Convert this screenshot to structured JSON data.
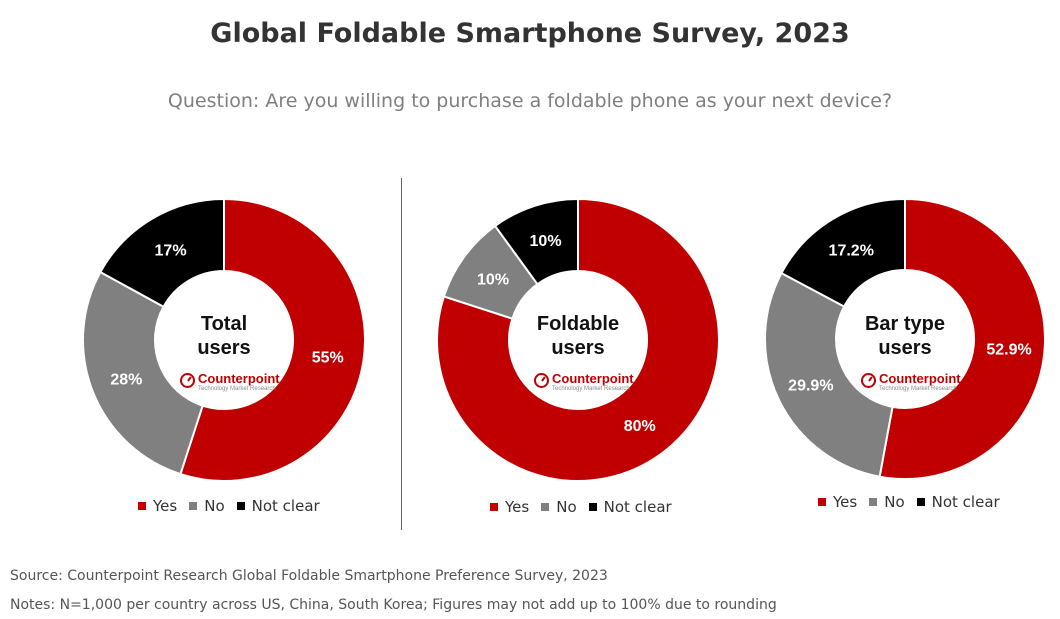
{
  "title": "Global Foldable Smartphone Survey, 2023",
  "subtitle": "Question: Are you willing to purchase a foldable phone as your next device?",
  "brand": {
    "name": "Counterpoint",
    "tagline": "Technology Market Research",
    "color": "#c00000"
  },
  "colors": {
    "Yes": "#c00000",
    "No": "#808080",
    "Not clear": "#000000"
  },
  "legend": [
    "Yes",
    "No",
    "Not clear"
  ],
  "chart_data": [
    {
      "type": "pie",
      "subtype": "donut",
      "title": "Total users",
      "categories": [
        "Yes",
        "No",
        "Not clear"
      ],
      "values": [
        55,
        28,
        17
      ],
      "labels": [
        "55%",
        "28%",
        "17%"
      ]
    },
    {
      "type": "pie",
      "subtype": "donut",
      "title": "Foldable users",
      "categories": [
        "Yes",
        "No",
        "Not clear"
      ],
      "values": [
        80,
        10,
        10
      ],
      "labels": [
        "80%",
        "10%",
        "10%"
      ]
    },
    {
      "type": "pie",
      "subtype": "donut",
      "title": "Bar type users",
      "categories": [
        "Yes",
        "No",
        "Not clear"
      ],
      "values": [
        52.9,
        29.9,
        17.2
      ],
      "labels": [
        "52.9%",
        "29.9%",
        "17.2%"
      ]
    }
  ],
  "footer": {
    "source": "Source: Counterpoint Research Global Foldable Smartphone Preference Survey, 2023",
    "notes": "Notes: N=1,000 per country across US, China, South Korea; Figures may not add up to 100% due to rounding"
  }
}
